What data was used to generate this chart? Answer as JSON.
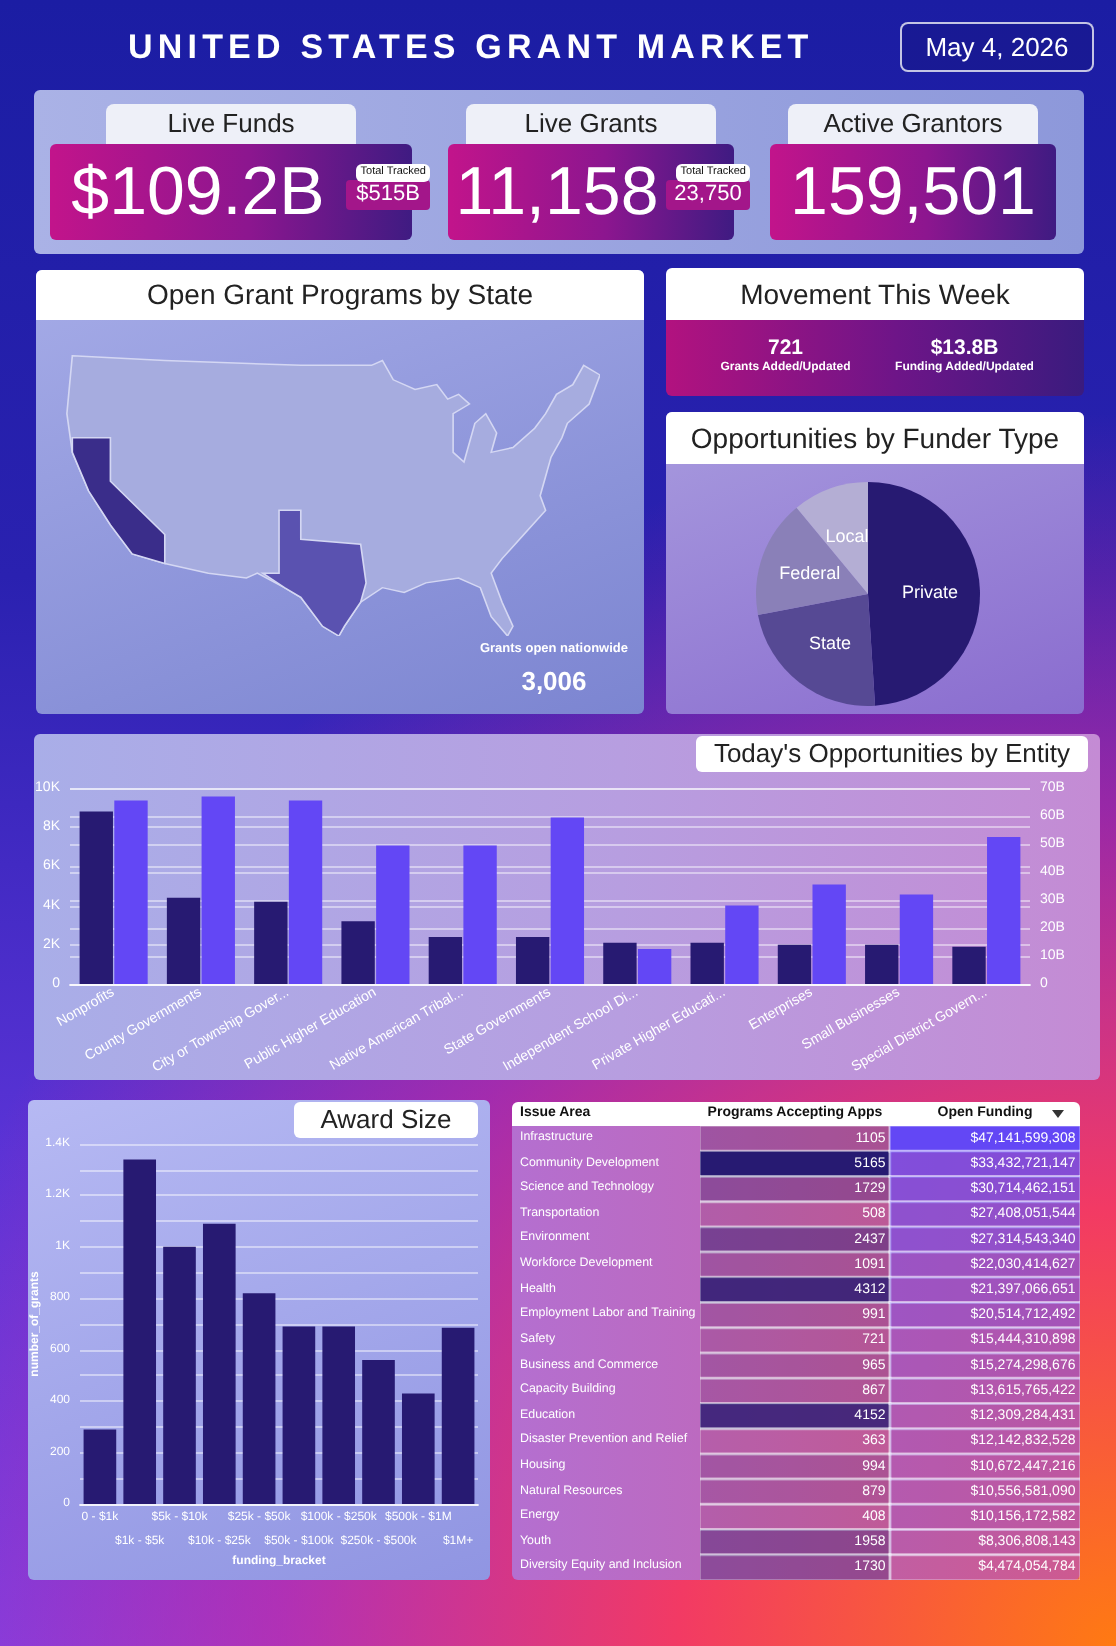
{
  "chart_data": [
    {
      "type": "other",
      "title": "UNITED STATES GRANT MARKET",
      "subtitle": "May 4, 2026"
    },
    {
      "type": "other",
      "title": "Live Funds",
      "annotations": [
        "$109.2B",
        "Total Tracked",
        "$515B"
      ]
    },
    {
      "type": "other",
      "title": "Live Grants",
      "annotations": [
        "11,158",
        "Total Tracked",
        "23,750"
      ]
    },
    {
      "type": "other",
      "title": "Active Grantors",
      "annotations": [
        "159,501"
      ]
    },
    {
      "type": "other",
      "title": "Open Grant Programs by State",
      "annotations": [
        "Grants open nationwide",
        "3,006"
      ]
    },
    {
      "type": "other",
      "title": "Movement This Week",
      "annotations": [
        "721",
        "Grants Added/Updated",
        "$13.8B",
        "Funding Added/Updated"
      ]
    },
    {
      "type": "pie",
      "title": "Opportunities by Funder Type",
      "categories": [
        "Private",
        "State",
        "Federal",
        "Local"
      ],
      "values": [
        49,
        23,
        17,
        11
      ],
      "colors": [
        "#271a72",
        "#564994",
        "#8a80b8",
        "#b4aed4"
      ]
    },
    {
      "type": "bar",
      "title": "Today's Opportunities by Entity",
      "categories": [
        "Nonprofits",
        "County Governments",
        "City or Township Gover...",
        "Public Higher Education",
        "Native American Tribal...",
        "State Governments",
        "Independent School Di...",
        "Private Higher Educati...",
        "Enterprises",
        "Small Businesses",
        "Special District Govern..."
      ],
      "series": [
        {
          "color": "#271a72",
          "values": [
            8800,
            4400,
            4200,
            3200,
            2400,
            2400,
            2100,
            2100,
            2000,
            2000,
            1900
          ]
        },
        {
          "color": "#6347f5",
          "axis": "y2",
          "values": [
            65500000000,
            67000000000,
            65500000000,
            49500000000,
            49500000000,
            59500000000,
            12500000000,
            28000000000,
            35500000000,
            32000000000,
            52500000000
          ]
        }
      ],
      "ylim": [
        0,
        10000
      ],
      "yticks": [
        0,
        {
          "value": 2000,
          "label": "2K"
        },
        {
          "value": 4000,
          "label": "4K"
        },
        {
          "value": 6000,
          "label": "6K"
        },
        {
          "value": 8000,
          "label": "8K"
        },
        {
          "value": 10000,
          "label": "10K"
        }
      ],
      "y2lim": [
        0,
        70000000000
      ],
      "y2ticks": [
        0,
        {
          "value": 10000000000,
          "label": "10B"
        },
        {
          "value": 20000000000,
          "label": "20B"
        },
        {
          "value": 30000000000,
          "label": "30B"
        },
        {
          "value": 40000000000,
          "label": "40B"
        },
        {
          "value": 50000000000,
          "label": "50B"
        },
        {
          "value": 60000000000,
          "label": "60B"
        },
        {
          "value": 70000000000,
          "label": "70B"
        }
      ],
      "grid": "y"
    },
    {
      "type": "bar",
      "title": "Award Size",
      "xlabel": "funding_bracket",
      "ylabel": "number_of_grants",
      "categories": [
        "0 - $1k",
        "$1k - $5k",
        "$5k - $10k",
        "$10k - $25k",
        "$25k - $50k",
        "$50k - $100k",
        "$100k - $250k",
        "$250k - $500k",
        "$500k - $1M",
        "$1M+"
      ],
      "values": [
        290,
        1340,
        1000,
        1090,
        820,
        690,
        690,
        560,
        430,
        685
      ],
      "color": "#271a72",
      "ylim": [
        0,
        1400
      ],
      "yticks": [
        0,
        {
          "value": 100,
          "label": null
        },
        200,
        {
          "value": 300,
          "label": null
        },
        400,
        {
          "value": 500,
          "label": null
        },
        600,
        {
          "value": 700,
          "label": null
        },
        800,
        {
          "value": 900,
          "label": null
        },
        {
          "value": 1000,
          "label": "1K"
        },
        {
          "value": 1100,
          "label": null
        },
        {
          "value": 1200,
          "label": "1.2K"
        },
        {
          "value": 1300,
          "label": null
        },
        {
          "value": 1400,
          "label": "1.4K"
        }
      ],
      "grid": "y"
    },
    {
      "type": "heatmap",
      "ylabel": "Issue Area",
      "categories": [
        "Programs Accepting Apps",
        "Open Funding"
      ],
      "y_categories": [
        "Infrastructure",
        "Community Development",
        "Science and Technology",
        "Transportation",
        "Environment",
        "Workforce Development",
        "Health",
        "Employment Labor and Training",
        "Safety",
        "Business and Commerce",
        "Capacity Building",
        "Education",
        "Disaster Prevention and Relief",
        "Housing",
        "Natural Resources",
        "Energy",
        "Youth",
        "Diversity Equity and Inclusion"
      ],
      "cells": [
        [
          1105,
          47141599308
        ],
        [
          5165,
          33432721147
        ],
        [
          1729,
          30714462151
        ],
        [
          508,
          27408051544
        ],
        [
          2437,
          27314543340
        ],
        [
          1091,
          22030414627
        ],
        [
          4312,
          21397066651
        ],
        [
          991,
          20514712492
        ],
        [
          721,
          15444310898
        ],
        [
          965,
          15274298676
        ],
        [
          867,
          13615765422
        ],
        [
          4152,
          12309284431
        ],
        [
          363,
          12142832528
        ],
        [
          994,
          10672447216
        ],
        [
          879,
          10556581090
        ],
        [
          408,
          10156172582
        ],
        [
          1958,
          8306808143
        ],
        [
          1730,
          4474054784
        ]
      ],
      "cell_labels": [
        [
          "1105",
          "$47,141,599,308"
        ],
        [
          "5165",
          "$33,432,721,147"
        ],
        [
          "1729",
          "$30,714,462,151"
        ],
        [
          "508",
          "$27,408,051,544"
        ],
        [
          "2437",
          "$27,314,543,340"
        ],
        [
          "1091",
          "$22,030,414,627"
        ],
        [
          "4312",
          "$21,397,066,651"
        ],
        [
          "991",
          "$20,514,712,492"
        ],
        [
          "721",
          "$15,444,310,898"
        ],
        [
          "965",
          "$15,274,298,676"
        ],
        [
          "867",
          "$13,615,765,422"
        ],
        [
          "4152",
          "$12,309,284,431"
        ],
        [
          "363",
          "$12,142,832,528"
        ],
        [
          "994",
          "$10,672,447,216"
        ],
        [
          "879",
          "$10,556,581,090"
        ],
        [
          "408",
          "$10,156,172,582"
        ],
        [
          "1958",
          "$8,306,808,143"
        ],
        [
          "1730",
          "$4,474,054,784"
        ]
      ]
    }
  ]
}
